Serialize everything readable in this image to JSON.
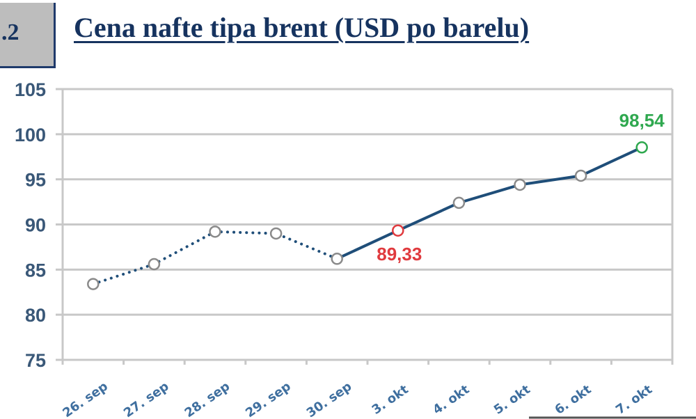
{
  "header": {
    "figure_number": ".2",
    "title": "Cena nafte tipa brent (USD po barelu)"
  },
  "colors": {
    "title": "#16335f",
    "line": "#1f4e79",
    "grid": "#c8c8c8",
    "axis_text": "#3a5878",
    "label_low": "#e03a3e",
    "label_high": "#2fa84f"
  },
  "chart_data": {
    "type": "line",
    "title": "Cena nafte tipa brent (USD po barelu)",
    "xlabel": "",
    "ylabel": "",
    "ylim": [
      75,
      105
    ],
    "yticks": [
      75,
      80,
      85,
      90,
      95,
      100,
      105
    ],
    "grid": true,
    "legend": null,
    "categories": [
      "26. sep",
      "27. sep",
      "28. sep",
      "29. sep",
      "30. sep",
      "3. okt",
      "4. okt",
      "5. okt",
      "6. okt",
      "7. okt"
    ],
    "series": [
      {
        "name": "Brent",
        "values": [
          83.4,
          85.6,
          89.2,
          89.0,
          86.2,
          89.33,
          92.4,
          94.4,
          95.4,
          98.54
        ],
        "style_note": "dotted for 26. sep – 30. sep, solid from 30. sep to 7. okt"
      }
    ],
    "annotations": [
      {
        "category": "3. okt",
        "text": "89,33",
        "color": "#e03a3e"
      },
      {
        "category": "7. okt",
        "text": "98,54",
        "color": "#2fa84f"
      }
    ]
  }
}
